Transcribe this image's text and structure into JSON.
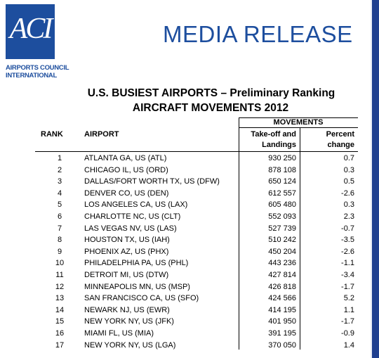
{
  "logo": {
    "mark": "ACI",
    "line1": "AIRPORTS COUNCIL",
    "line2": "INTERNATIONAL",
    "brand_color": "#1d4e9e"
  },
  "header": {
    "label": "MEDIA RELEASE"
  },
  "document": {
    "title_line1": "U.S.  BUSIEST AIRPORTS – Preliminary Ranking",
    "title_line2": "AIRCRAFT MOVEMENTS 2012"
  },
  "table": {
    "headers": {
      "rank": "RANK",
      "airport": "AIRPORT",
      "movements": "MOVEMENTS",
      "takeoff_line1": "Take-off and",
      "takeoff_line2": "Landings",
      "percent_line1": "Percent",
      "percent_line2": "change"
    },
    "rows": [
      {
        "rank": "1",
        "airport": "ATLANTA GA, US (ATL)",
        "movements": "930 250",
        "change": "0.7"
      },
      {
        "rank": "2",
        "airport": "CHICAGO IL, US (ORD)",
        "movements": "878 108",
        "change": "0.3"
      },
      {
        "rank": "3",
        "airport": "DALLAS/FORT WORTH TX, US (DFW)",
        "movements": "650 124",
        "change": "0.5"
      },
      {
        "rank": "4",
        "airport": "DENVER CO, US (DEN)",
        "movements": "612 557",
        "change": "-2.6"
      },
      {
        "rank": "5",
        "airport": "LOS ANGELES CA, US (LAX)",
        "movements": "605 480",
        "change": "0.3"
      },
      {
        "rank": "6",
        "airport": "CHARLOTTE NC, US (CLT)",
        "movements": "552 093",
        "change": "2.3"
      },
      {
        "rank": "7",
        "airport": "LAS VEGAS NV, US (LAS)",
        "movements": "527 739",
        "change": "-0.7"
      },
      {
        "rank": "8",
        "airport": "HOUSTON TX, US (IAH)",
        "movements": "510 242",
        "change": "-3.5"
      },
      {
        "rank": "9",
        "airport": "PHOENIX AZ, US (PHX)",
        "movements": "450 204",
        "change": "-2.6"
      },
      {
        "rank": "10",
        "airport": "PHILADELPHIA PA, US (PHL)",
        "movements": "443 236",
        "change": "-1.1"
      },
      {
        "rank": "11",
        "airport": "DETROIT MI, US (DTW)",
        "movements": "427 814",
        "change": "-3.4"
      },
      {
        "rank": "12",
        "airport": "MINNEAPOLIS MN, US (MSP)",
        "movements": "426 818",
        "change": "-1.7"
      },
      {
        "rank": "13",
        "airport": "SAN FRANCISCO CA, US (SFO)",
        "movements": "424 566",
        "change": "5.2"
      },
      {
        "rank": "14",
        "airport": "NEWARK NJ, US (EWR)",
        "movements": "414 195",
        "change": "1.1"
      },
      {
        "rank": "15",
        "airport": "NEW YORK NY, US (JFK)",
        "movements": "401 950",
        "change": "-1.7"
      },
      {
        "rank": "16",
        "airport": "MIAMI FL, US (MIA)",
        "movements": "391 195",
        "change": "-0.9"
      },
      {
        "rank": "17",
        "airport": "NEW YORK NY, US (LGA)",
        "movements": "370 050",
        "change": "1.4"
      }
    ]
  }
}
